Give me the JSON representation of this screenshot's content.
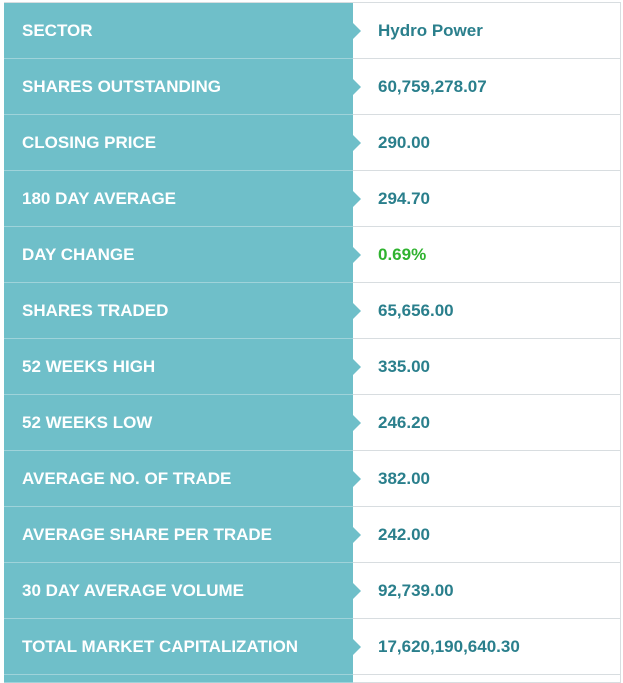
{
  "stats": [
    {
      "label": "SECTOR",
      "value": "Hydro Power",
      "tone": "neutral"
    },
    {
      "label": "SHARES OUTSTANDING",
      "value": "60,759,278.07",
      "tone": "neutral"
    },
    {
      "label": "CLOSING PRICE",
      "value": "290.00",
      "tone": "neutral"
    },
    {
      "label": "180 DAY AVERAGE",
      "value": "294.70",
      "tone": "neutral"
    },
    {
      "label": "DAY CHANGE",
      "value": "0.69%",
      "tone": "positive"
    },
    {
      "label": "SHARES TRADED",
      "value": "65,656.00",
      "tone": "neutral"
    },
    {
      "label": "52 WEEKS HIGH",
      "value": "335.00",
      "tone": "neutral"
    },
    {
      "label": "52 WEEKS LOW",
      "value": "246.20",
      "tone": "neutral"
    },
    {
      "label": "AVERAGE NO. OF TRADE",
      "value": "382.00",
      "tone": "neutral"
    },
    {
      "label": "AVERAGE SHARE PER TRADE",
      "value": "242.00",
      "tone": "neutral"
    },
    {
      "label": "30 DAY AVERAGE VOLUME",
      "value": "92,739.00",
      "tone": "neutral"
    },
    {
      "label": "TOTAL MARKET CAPITALIZATION",
      "value": "17,620,190,640.30",
      "tone": "neutral"
    }
  ],
  "colors": {
    "label_bg": "#6fbfc9",
    "value_text": "#2a7f8c",
    "positive_text": "#2fb32f"
  }
}
